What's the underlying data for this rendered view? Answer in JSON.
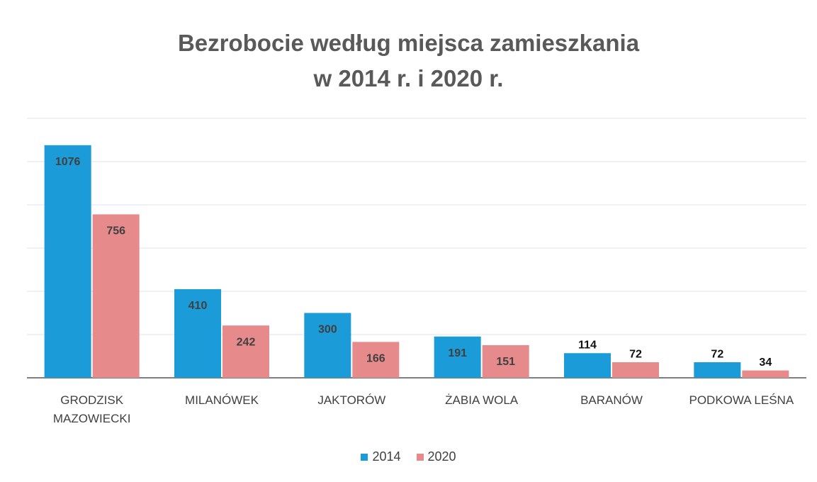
{
  "chart_data": {
    "type": "bar",
    "title": [
      "Bezrobocie według miejsca zamieszkania",
      "w 2014 r. i 2020 r."
    ],
    "categories": [
      "GRODZISK MAZOWIECKI",
      "MILANÓWEK",
      "JAKTORÓW",
      "ŻABIA WOLA",
      "BARANÓW",
      "PODKOWA LEŚNA"
    ],
    "series": [
      {
        "name": "2014",
        "color": "#1b9bd7",
        "values": [
          1076,
          410,
          300,
          191,
          114,
          72
        ]
      },
      {
        "name": "2020",
        "color": "#e68a8c",
        "values": [
          756,
          242,
          166,
          151,
          72,
          34
        ]
      }
    ],
    "ylim": [
      0,
      1200
    ],
    "yticks": [
      0,
      200,
      400,
      600,
      800,
      1000,
      1200
    ],
    "grid": true,
    "legend": "bottom"
  }
}
